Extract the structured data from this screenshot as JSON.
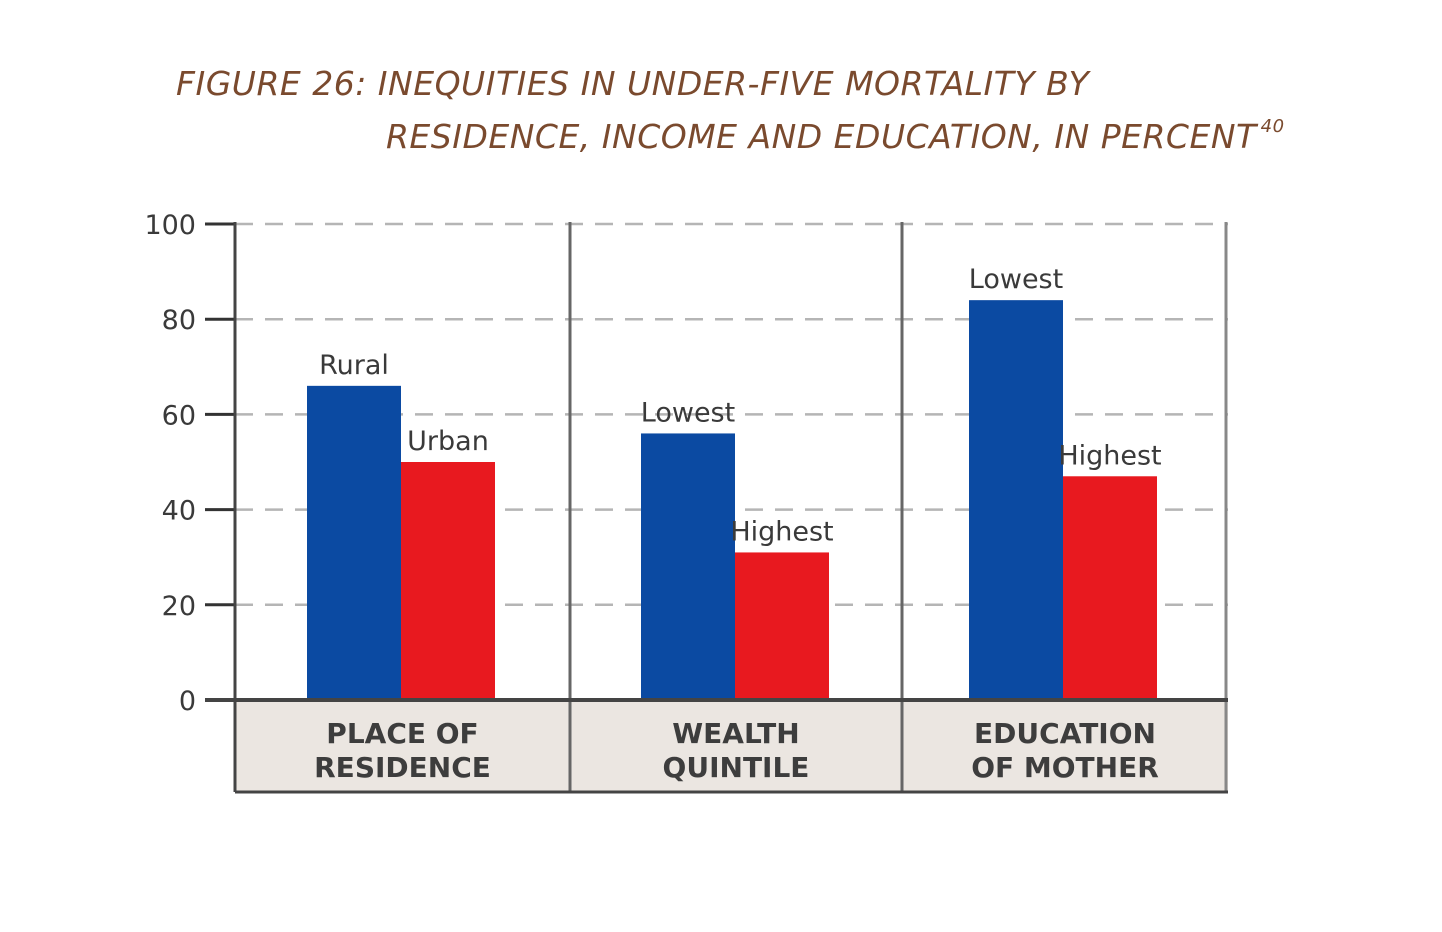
{
  "title_line1": "FIGURE 26: INEQUITIES IN UNDER-FIVE MORTALITY BY",
  "title_line2": "RESIDENCE, INCOME AND EDUCATION, IN PERCENT",
  "title_superscript": "40",
  "colors": {
    "title": "#7a4a2e",
    "series_a": "#0b4aa2",
    "series_b": "#e8191f",
    "panel": "#ebe6e1",
    "axis": "#555555"
  },
  "chart_data": {
    "type": "bar",
    "ylim": [
      0,
      100
    ],
    "yticks": [
      "0",
      "20",
      "40",
      "60",
      "80",
      "100"
    ],
    "grid": true,
    "groups": [
      {
        "category_lines": [
          "PLACE OF",
          "RESIDENCE"
        ],
        "bars": [
          {
            "label": "Rural",
            "value": 66
          },
          {
            "label": "Urban",
            "value": 50
          }
        ]
      },
      {
        "category_lines": [
          "WEALTH",
          "QUINTILE"
        ],
        "bars": [
          {
            "label": "Lowest",
            "value": 56
          },
          {
            "label": "Highest",
            "value": 31
          }
        ]
      },
      {
        "category_lines": [
          "EDUCATION",
          "OF MOTHER"
        ],
        "bars": [
          {
            "label": "Lowest",
            "value": 84
          },
          {
            "label": "Highest",
            "value": 47
          }
        ]
      }
    ]
  }
}
